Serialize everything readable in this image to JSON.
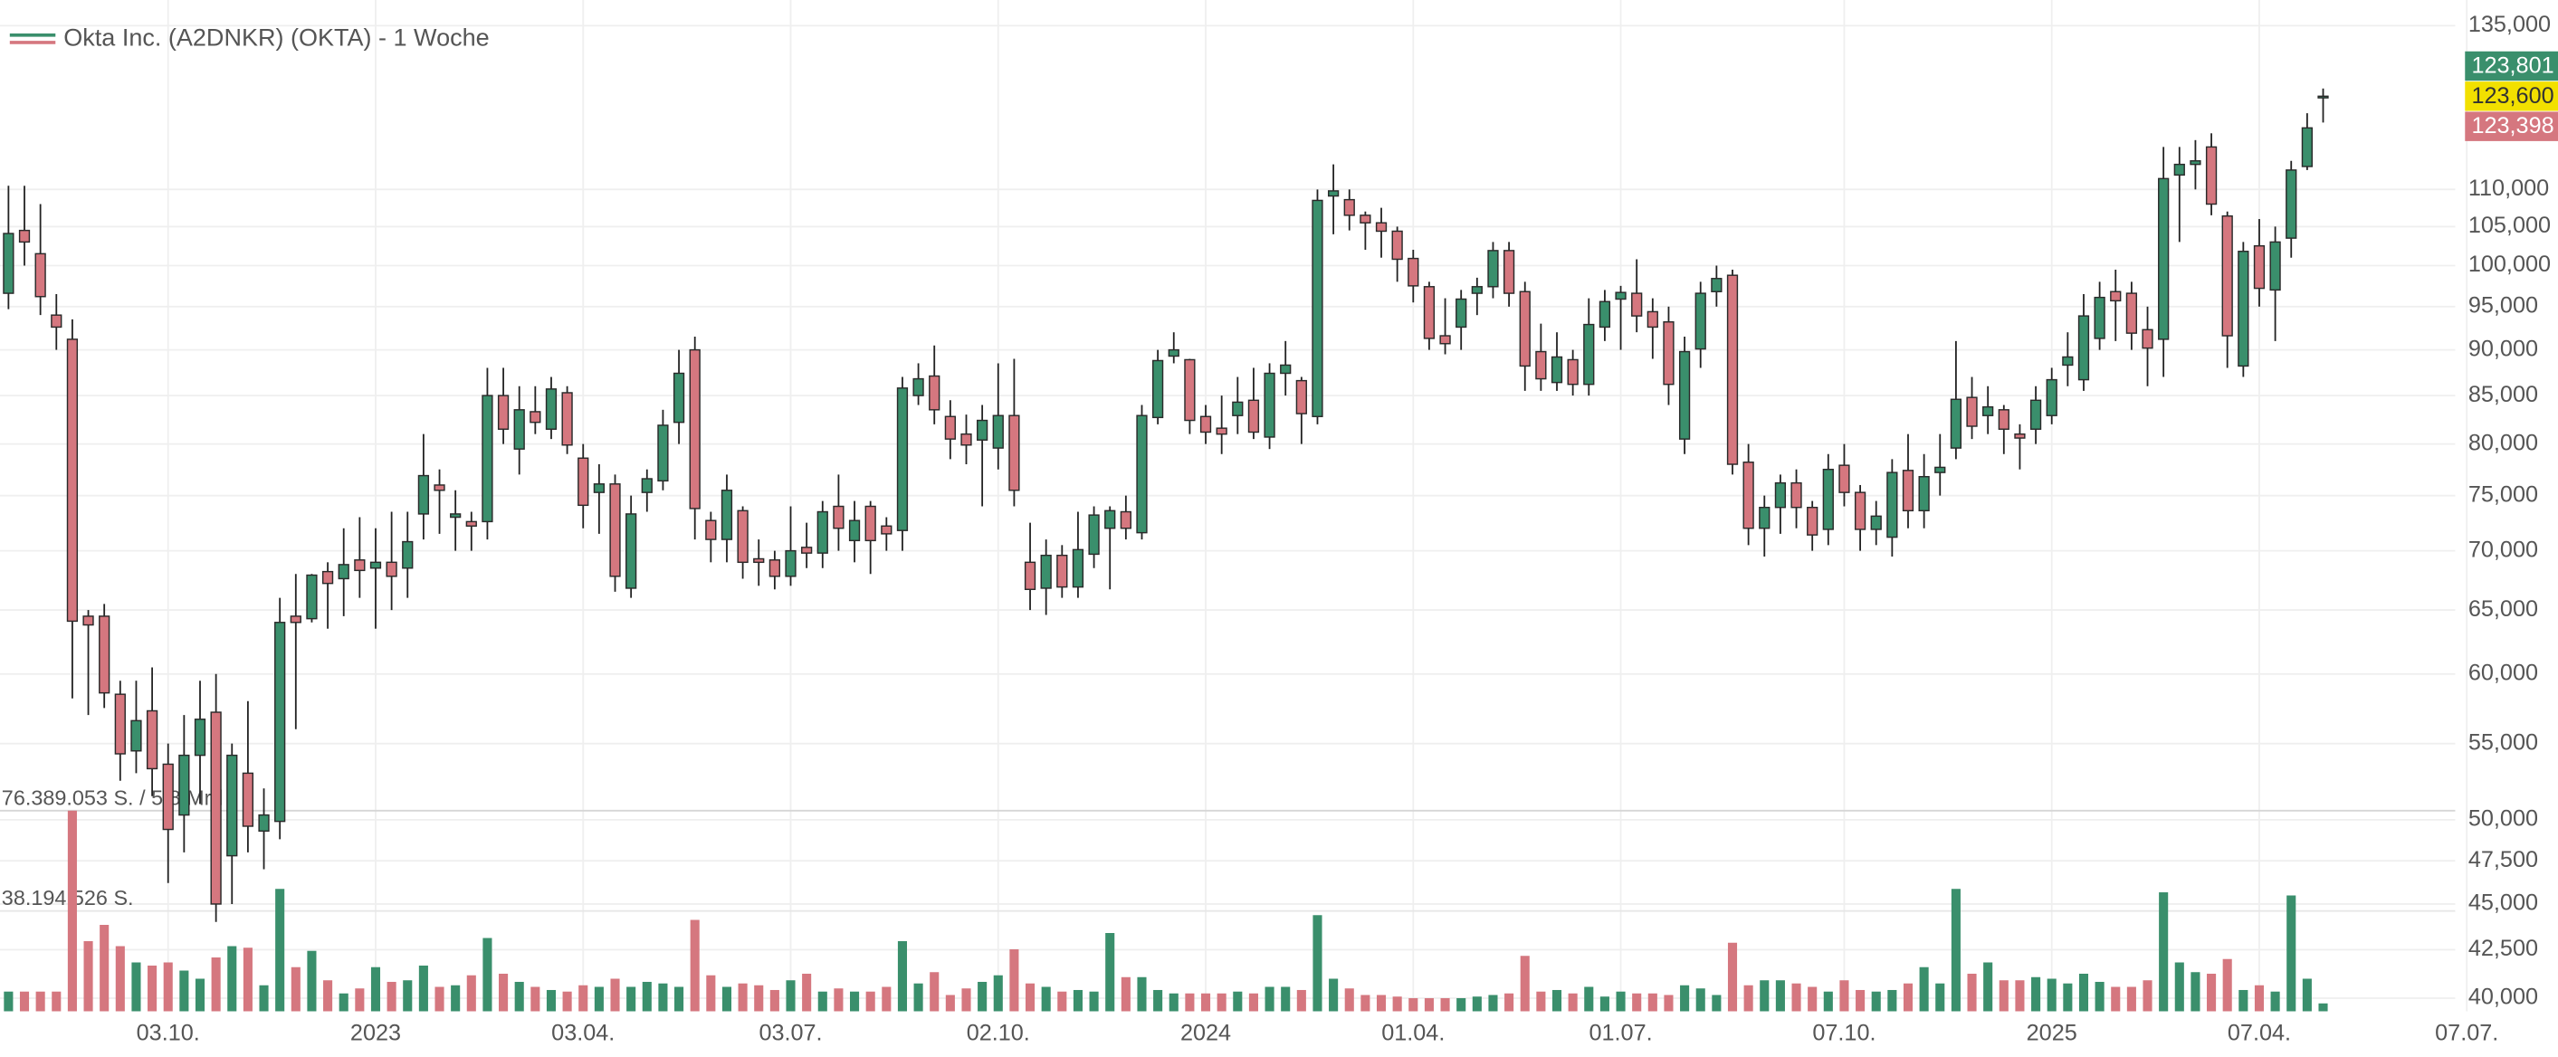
{
  "chart_data": {
    "type": "candlestick",
    "title": "Okta Inc. (A2DNKR) (OKTA) - 1 Woche",
    "log_scale": true,
    "grid": true,
    "up_color": "#3a8f6c",
    "down_color": "#d5777f",
    "categories": [
      null,
      null,
      null,
      null,
      null,
      null,
      null,
      null,
      null,
      null,
      "03.10.",
      null,
      null,
      null,
      null,
      null,
      null,
      null,
      null,
      null,
      null,
      null,
      null,
      "2023",
      null,
      null,
      null,
      null,
      null,
      null,
      null,
      null,
      null,
      null,
      null,
      null,
      "03.04.",
      null,
      null,
      null,
      null,
      null,
      null,
      null,
      null,
      null,
      null,
      null,
      null,
      "03.07.",
      null,
      null,
      null,
      null,
      null,
      null,
      null,
      null,
      null,
      null,
      null,
      null,
      "02.10.",
      null,
      null,
      null,
      null,
      null,
      null,
      null,
      null,
      null,
      null,
      null,
      null,
      "2024",
      null,
      null,
      null,
      null,
      null,
      null,
      null,
      null,
      null,
      null,
      null,
      null,
      "01.04.",
      null,
      null,
      null,
      null,
      null,
      null,
      null,
      null,
      null,
      null,
      null,
      null,
      "01.07.",
      null,
      null,
      null,
      null,
      null,
      null,
      null,
      null,
      null,
      null,
      null,
      null,
      null,
      "07.10.",
      null,
      null,
      null,
      null,
      null,
      null,
      null,
      null,
      null,
      null,
      null,
      null,
      "2025",
      null,
      null,
      null,
      null,
      null,
      null,
      null,
      null,
      null,
      null,
      null,
      null,
      "07.04.",
      null,
      null,
      null,
      null,
      null,
      null,
      null,
      null,
      null,
      null,
      null,
      null,
      "07.07."
    ],
    "open": [
      96600,
      104500,
      101500,
      94000,
      91200,
      64500,
      64500,
      58500,
      54500,
      57300,
      53600,
      50300,
      54200,
      57200,
      47800,
      53000,
      49300,
      49900,
      64500,
      64300,
      68200,
      67600,
      69200,
      68500,
      69000,
      68500,
      73300,
      76000,
      73000,
      72600,
      72600,
      85000,
      79500,
      83300,
      81500,
      85300,
      78600,
      75300,
      76100,
      66800,
      75300,
      76400,
      82200,
      90000,
      72700,
      71000,
      73600,
      69300,
      69200,
      67800,
      70300,
      69800,
      74000,
      70900,
      74000,
      72200,
      71800,
      85000,
      87100,
      82800,
      81000,
      80400,
      79600,
      82900,
      69000,
      66800,
      69600,
      66900,
      69700,
      72000,
      73500,
      71600,
      82700,
      89300,
      88900,
      82800,
      81600,
      82900,
      84500,
      80700,
      87400,
      86600,
      82800,
      109100,
      108600,
      106500,
      105500,
      104400,
      100900,
      97400,
      91600,
      92600,
      96600,
      97400,
      101900,
      96800,
      89800,
      86400,
      88900,
      86200,
      92600,
      95900,
      96600,
      94400,
      93200,
      80500,
      90100,
      96800,
      98800,
      78200,
      72000,
      73900,
      76200,
      73900,
      71900,
      77900,
      75300,
      71900,
      71200,
      77400,
      73600,
      77200,
      79600,
      84800,
      82900,
      83500,
      81000,
      81500,
      82900,
      88300,
      86700,
      91300,
      96800,
      96600,
      92300,
      91200,
      112000,
      113500,
      116000,
      106400,
      88200,
      102500,
      97000,
      103500,
      113200,
      123400,
      null,
      null,
      null,
      null,
      null,
      null,
      null,
      null,
      null
    ],
    "high": [
      110500,
      110500,
      108000,
      96500,
      93500,
      65000,
      65500,
      59500,
      59500,
      60500,
      55000,
      57000,
      59500,
      60000,
      55000,
      58000,
      52000,
      66000,
      68000,
      68000,
      69000,
      72000,
      73000,
      72000,
      73500,
      73500,
      81000,
      77500,
      75500,
      73500,
      88000,
      88000,
      86000,
      86000,
      87000,
      86000,
      80000,
      78000,
      77000,
      75000,
      77500,
      83500,
      90000,
      91500,
      73500,
      77000,
      74000,
      71000,
      70000,
      74000,
      72500,
      74500,
      77000,
      74500,
      74500,
      73000,
      87000,
      88500,
      90500,
      84500,
      83000,
      84000,
      88500,
      89000,
      72500,
      71000,
      70500,
      73500,
      74000,
      74000,
      75000,
      84000,
      90000,
      92000,
      89000,
      84000,
      85000,
      87000,
      88000,
      88500,
      91000,
      87000,
      110000,
      113500,
      110000,
      107000,
      107500,
      105000,
      102000,
      98000,
      96000,
      97000,
      98500,
      103000,
      103000,
      98000,
      93000,
      92000,
      90000,
      96000,
      97000,
      97500,
      100800,
      96000,
      95000,
      91500,
      98000,
      100000,
      99500,
      80000,
      75000,
      77000,
      77500,
      74500,
      79000,
      80000,
      76000,
      74500,
      78500,
      81000,
      79000,
      81000,
      91000,
      87000,
      86000,
      84000,
      82000,
      86000,
      88000,
      92000,
      96500,
      98000,
      99500,
      98000,
      95000,
      116000,
      116000,
      117000,
      118000,
      107000,
      103000,
      106000,
      105000,
      114000,
      121000,
      124800,
      null,
      null,
      null,
      null,
      null,
      null,
      null,
      null,
      null
    ],
    "low": [
      94700,
      100000,
      94000,
      90000,
      58200,
      57000,
      57500,
      52500,
      53000,
      51500,
      46200,
      48000,
      51000,
      44000,
      45000,
      48000,
      47000,
      48800,
      56000,
      64000,
      63500,
      64500,
      66000,
      63500,
      65000,
      66000,
      71000,
      71500,
      70000,
      70000,
      71000,
      80000,
      77000,
      81000,
      80500,
      79000,
      72000,
      71500,
      66500,
      66000,
      73500,
      75500,
      80000,
      71000,
      69000,
      69000,
      67600,
      67000,
      66700,
      67000,
      68500,
      68500,
      70000,
      69000,
      68000,
      70000,
      70000,
      84000,
      82000,
      78500,
      78000,
      74000,
      77500,
      74000,
      65000,
      64600,
      66000,
      66000,
      68500,
      66700,
      71000,
      71000,
      82000,
      88500,
      81000,
      80000,
      79000,
      81000,
      80500,
      79500,
      85000,
      80000,
      82000,
      104000,
      104500,
      102000,
      101000,
      98000,
      95500,
      90000,
      89500,
      90000,
      94000,
      96000,
      95000,
      85500,
      85500,
      85500,
      85000,
      85000,
      91000,
      90000,
      92000,
      89000,
      84000,
      79000,
      88000,
      95000,
      77000,
      70500,
      69500,
      71500,
      72000,
      70000,
      70500,
      74000,
      70000,
      70500,
      69500,
      72000,
      72000,
      75000,
      78500,
      80500,
      81000,
      79000,
      77500,
      80000,
      82000,
      86000,
      85500,
      90000,
      91000,
      90000,
      86000,
      87000,
      103000,
      110000,
      106500,
      88000,
      87000,
      95000,
      91000,
      101000,
      112700,
      119600,
      null,
      null,
      null,
      null,
      null,
      null,
      null,
      null,
      null
    ],
    "close": [
      104100,
      103000,
      96200,
      92600,
      64100,
      63800,
      58600,
      54300,
      56600,
      53300,
      49400,
      54200,
      56700,
      45000,
      54200,
      49600,
      50300,
      64000,
      64000,
      67900,
      67200,
      68800,
      68300,
      69000,
      67800,
      70800,
      76900,
      75500,
      73300,
      72200,
      85000,
      81500,
      83500,
      82200,
      85700,
      79900,
      74100,
      76100,
      67800,
      73300,
      76600,
      81900,
      87400,
      73800,
      71000,
      75500,
      69000,
      69000,
      67800,
      70000,
      69800,
      73500,
      72000,
      72700,
      70900,
      71500,
      85800,
      86800,
      83500,
      80500,
      79900,
      82400,
      82900,
      75500,
      66700,
      69600,
      66900,
      70100,
      73200,
      73600,
      72000,
      82900,
      88800,
      90000,
      82400,
      81200,
      81000,
      84300,
      81200,
      87400,
      88300,
      83100,
      108500,
      109800,
      106500,
      105500,
      104400,
      100800,
      97500,
      91300,
      90700,
      95900,
      97400,
      101900,
      96600,
      88200,
      86800,
      89200,
      86200,
      92900,
      95600,
      96700,
      93900,
      92600,
      86200,
      89800,
      96600,
      98400,
      78000,
      72000,
      73900,
      76200,
      73900,
      71400,
      77500,
      75300,
      71900,
      73100,
      77200,
      73600,
      76800,
      77700,
      84600,
      81800,
      83800,
      81500,
      80600,
      84500,
      86700,
      89200,
      93900,
      96100,
      95700,
      91900,
      90200,
      111500,
      113500,
      114000,
      108000,
      91600,
      101800,
      97200,
      103000,
      112700,
      118800,
      123600,
      null,
      null,
      null,
      null,
      null,
      null,
      null,
      null,
      null
    ],
    "volume": [
      7500000,
      7500000,
      7500000,
      7500000,
      76389053,
      26700000,
      32900000,
      24800000,
      18600000,
      17400000,
      18600000,
      15500000,
      12400000,
      20500000,
      24800000,
      24200000,
      9900000,
      46600000,
      16800000,
      23000000,
      11800000,
      6800000,
      8700000,
      16800000,
      11200000,
      11800000,
      17400000,
      9300000,
      9900000,
      13700000,
      27900000,
      14300000,
      11200000,
      9300000,
      8100000,
      7500000,
      9900000,
      9300000,
      12400000,
      9300000,
      11200000,
      10600000,
      9300000,
      34800000,
      13700000,
      9300000,
      10600000,
      9900000,
      8100000,
      11800000,
      14300000,
      7500000,
      8700000,
      7500000,
      7500000,
      9300000,
      26700000,
      10600000,
      14900000,
      6200000,
      8700000,
      11200000,
      13700000,
      23600000,
      10600000,
      9300000,
      7500000,
      8100000,
      7500000,
      29800000,
      13000000,
      13000000,
      8100000,
      6800000,
      6800000,
      6800000,
      6800000,
      7500000,
      6800000,
      9300000,
      9300000,
      8100000,
      36600000,
      12400000,
      8700000,
      6200000,
      6200000,
      5600000,
      5000000,
      5000000,
      5000000,
      5000000,
      5600000,
      6200000,
      6800000,
      21100000,
      7500000,
      8100000,
      6800000,
      9300000,
      5600000,
      7500000,
      6800000,
      6800000,
      6200000,
      9900000,
      8700000,
      6200000,
      26100000,
      9900000,
      11800000,
      11800000,
      10600000,
      9300000,
      7500000,
      11800000,
      8100000,
      7500000,
      8100000,
      10600000,
      16800000,
      10600000,
      46600000,
      14300000,
      18600000,
      11800000,
      11800000,
      13000000,
      12400000,
      10600000,
      14300000,
      11200000,
      9300000,
      9300000,
      11800000,
      45300000,
      18600000,
      14900000,
      14300000,
      19900000,
      8100000,
      9900000,
      7500000,
      44100000,
      12400000,
      3000000,
      null,
      null,
      null,
      null,
      null,
      null,
      null,
      null,
      null
    ],
    "ylim": [
      39350,
      139400
    ],
    "yticks": [
      {
        "value": 135000,
        "label": "135,000"
      },
      {
        "value": 110000,
        "label": "110,000"
      },
      {
        "value": 105000,
        "label": "105,000"
      },
      {
        "value": 100000,
        "label": "100,000"
      },
      {
        "value": 95000,
        "label": "95,000"
      },
      {
        "value": 90000,
        "label": "90,000"
      },
      {
        "value": 85000,
        "label": "85,000"
      },
      {
        "value": 80000,
        "label": "80,000"
      },
      {
        "value": 75000,
        "label": "75,000"
      },
      {
        "value": 70000,
        "label": "70,000"
      },
      {
        "value": 65000,
        "label": "65,000"
      },
      {
        "value": 60000,
        "label": "60,000"
      },
      {
        "value": 55000,
        "label": "55,000"
      },
      {
        "value": 50000,
        "label": "50,000"
      },
      {
        "value": 47500,
        "label": "47,500"
      },
      {
        "value": 45000,
        "label": "45,000"
      },
      {
        "value": 42500,
        "label": "42,500"
      },
      {
        "value": 40000,
        "label": "40,000"
      }
    ],
    "volume_lim": [
      0,
      76389053
    ],
    "volume_ticks": [
      {
        "value": 76389053,
        "label": "76.389.053 S. / 5,8 Mrd"
      },
      {
        "value": 38194526,
        "label": "38.194.526 S."
      }
    ],
    "price_tags": [
      {
        "value": 123801,
        "label": "123,801",
        "color": "#3a8f6c"
      },
      {
        "value": 123600,
        "label": "123,600",
        "color": "#f2e000"
      },
      {
        "value": 123398,
        "label": "123,398",
        "color": "#d5777f"
      }
    ]
  }
}
